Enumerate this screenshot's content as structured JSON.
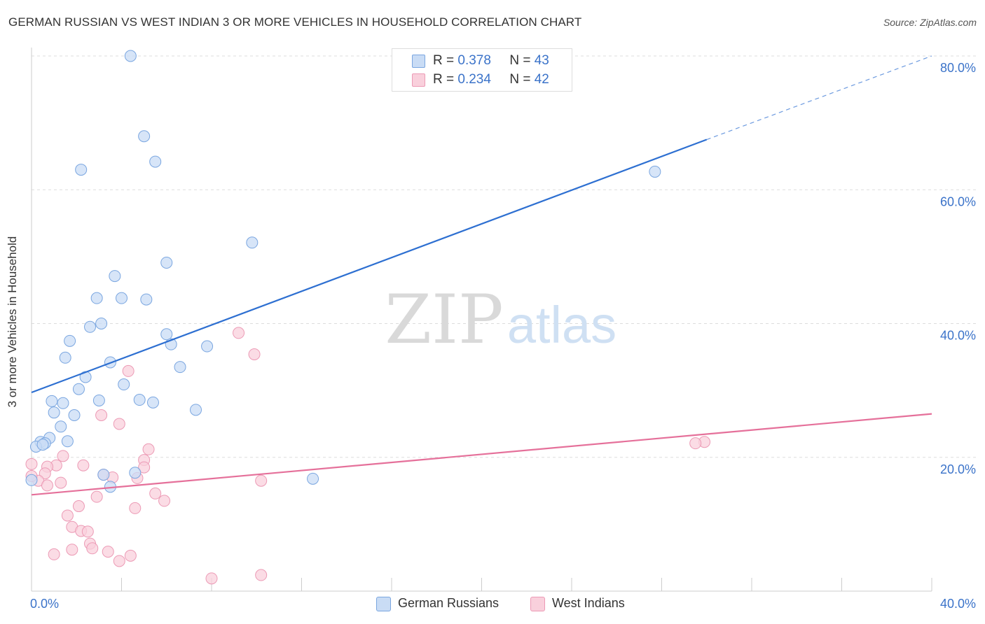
{
  "title": "GERMAN RUSSIAN VS WEST INDIAN 3 OR MORE VEHICLES IN HOUSEHOLD CORRELATION CHART",
  "source": "Source: ZipAtlas.com",
  "watermark": {
    "zip": "ZIP",
    "atlas": "atlas"
  },
  "legend": {
    "rows": [
      {
        "r_label": "R =",
        "r_value": "0.378",
        "n_label": "N =",
        "n_value": "43",
        "color": "#a9c8f0"
      },
      {
        "r_label": "R =",
        "r_value": "0.234",
        "n_label": "N =",
        "n_value": "42",
        "color": "#f6b8cb"
      }
    ]
  },
  "bottom_legend": [
    {
      "label": "German Russians",
      "color": "#a9c8f0"
    },
    {
      "label": "West Indians",
      "color": "#f6b8cb"
    }
  ],
  "colors": {
    "blue_point_fill": "#c9dcf5",
    "blue_point_stroke": "#7aa6e0",
    "blue_line": "#2d6fd1",
    "pink_point_fill": "#f9d0dc",
    "pink_point_stroke": "#ec9ab5",
    "pink_line": "#e5709a",
    "grid": "#dddddd",
    "tick_label": "#3b73c9"
  },
  "chart_data": {
    "type": "scatter",
    "title": "GERMAN RUSSIAN VS WEST INDIAN 3 OR MORE VEHICLES IN HOUSEHOLD CORRELATION CHART",
    "xlabel": "",
    "ylabel": "3 or more Vehicles in Household",
    "xlim": [
      0,
      40
    ],
    "ylim": [
      0,
      80
    ],
    "x_tick_labels": [
      {
        "value": 0,
        "label": "0.0%"
      },
      {
        "value": 40,
        "label": "40.0%"
      }
    ],
    "y_tick_labels": [
      {
        "value": 20,
        "label": "20.0%"
      },
      {
        "value": 40,
        "label": "40.0%"
      },
      {
        "value": 60,
        "label": "60.0%"
      },
      {
        "value": 80,
        "label": "80.0%"
      }
    ],
    "y_gridlines": [
      20,
      40,
      60,
      80
    ],
    "x_minor_ticks": [
      4,
      8,
      12,
      16,
      20,
      24,
      28,
      32,
      36,
      40
    ],
    "grid": true,
    "series": [
      {
        "name": "German Russians",
        "color": "#a9c8f0",
        "r": 0.378,
        "n": 43,
        "trend": {
          "x0": 0,
          "y0": 29.7,
          "x1": 30.0,
          "y1": 67.5,
          "dashed_to_x": 40,
          "dashed_to_y": 80.0
        },
        "points": [
          [
            4.4,
            80.0
          ],
          [
            5.0,
            68.0
          ],
          [
            5.5,
            64.2
          ],
          [
            2.2,
            63.0
          ],
          [
            27.7,
            62.7
          ],
          [
            9.8,
            52.1
          ],
          [
            6.0,
            49.1
          ],
          [
            3.7,
            47.1
          ],
          [
            2.9,
            43.8
          ],
          [
            4.0,
            43.8
          ],
          [
            5.1,
            43.6
          ],
          [
            3.1,
            40.0
          ],
          [
            2.6,
            39.5
          ],
          [
            6.0,
            38.4
          ],
          [
            1.7,
            37.4
          ],
          [
            6.2,
            36.9
          ],
          [
            7.8,
            36.6
          ],
          [
            1.5,
            34.9
          ],
          [
            3.5,
            34.2
          ],
          [
            6.6,
            33.5
          ],
          [
            2.4,
            32.0
          ],
          [
            4.1,
            30.9
          ],
          [
            2.1,
            30.2
          ],
          [
            0.9,
            28.4
          ],
          [
            1.4,
            28.1
          ],
          [
            3.0,
            28.5
          ],
          [
            4.8,
            28.6
          ],
          [
            5.4,
            28.2
          ],
          [
            7.3,
            27.1
          ],
          [
            1.0,
            26.7
          ],
          [
            1.9,
            26.3
          ],
          [
            1.3,
            24.6
          ],
          [
            0.8,
            22.9
          ],
          [
            1.6,
            22.4
          ],
          [
            0.4,
            22.3
          ],
          [
            0.6,
            22.1
          ],
          [
            0.2,
            21.6
          ],
          [
            0.5,
            21.9
          ],
          [
            3.2,
            17.4
          ],
          [
            4.6,
            17.7
          ],
          [
            3.5,
            15.6
          ],
          [
            0.0,
            16.6
          ],
          [
            12.5,
            16.8
          ]
        ]
      },
      {
        "name": "West Indians",
        "color": "#f6b8cb",
        "r": 0.234,
        "n": 42,
        "trend": {
          "x0": 0,
          "y0": 14.4,
          "x1": 40,
          "y1": 26.5
        },
        "points": [
          [
            9.2,
            38.6
          ],
          [
            9.9,
            35.4
          ],
          [
            4.3,
            32.9
          ],
          [
            3.1,
            26.3
          ],
          [
            3.9,
            25.0
          ],
          [
            29.9,
            22.3
          ],
          [
            29.5,
            22.1
          ],
          [
            5.2,
            21.2
          ],
          [
            1.4,
            20.2
          ],
          [
            5.0,
            19.6
          ],
          [
            0.0,
            19.0
          ],
          [
            1.1,
            18.8
          ],
          [
            2.3,
            18.8
          ],
          [
            0.7,
            18.6
          ],
          [
            5.0,
            18.5
          ],
          [
            0.6,
            17.6
          ],
          [
            3.2,
            17.4
          ],
          [
            3.6,
            17.0
          ],
          [
            4.7,
            16.9
          ],
          [
            0.3,
            16.5
          ],
          [
            10.2,
            16.5
          ],
          [
            1.3,
            16.2
          ],
          [
            0.7,
            15.8
          ],
          [
            5.5,
            14.6
          ],
          [
            2.9,
            14.1
          ],
          [
            5.9,
            13.5
          ],
          [
            2.1,
            12.7
          ],
          [
            4.6,
            12.4
          ],
          [
            1.6,
            11.3
          ],
          [
            1.8,
            9.6
          ],
          [
            2.2,
            9.0
          ],
          [
            2.5,
            8.9
          ],
          [
            2.6,
            7.1
          ],
          [
            2.7,
            6.4
          ],
          [
            1.8,
            6.2
          ],
          [
            3.4,
            5.9
          ],
          [
            1.0,
            5.5
          ],
          [
            4.4,
            5.3
          ],
          [
            3.9,
            4.5
          ],
          [
            8.0,
            1.9
          ],
          [
            10.2,
            2.4
          ],
          [
            0.0,
            17.2
          ]
        ]
      }
    ]
  }
}
